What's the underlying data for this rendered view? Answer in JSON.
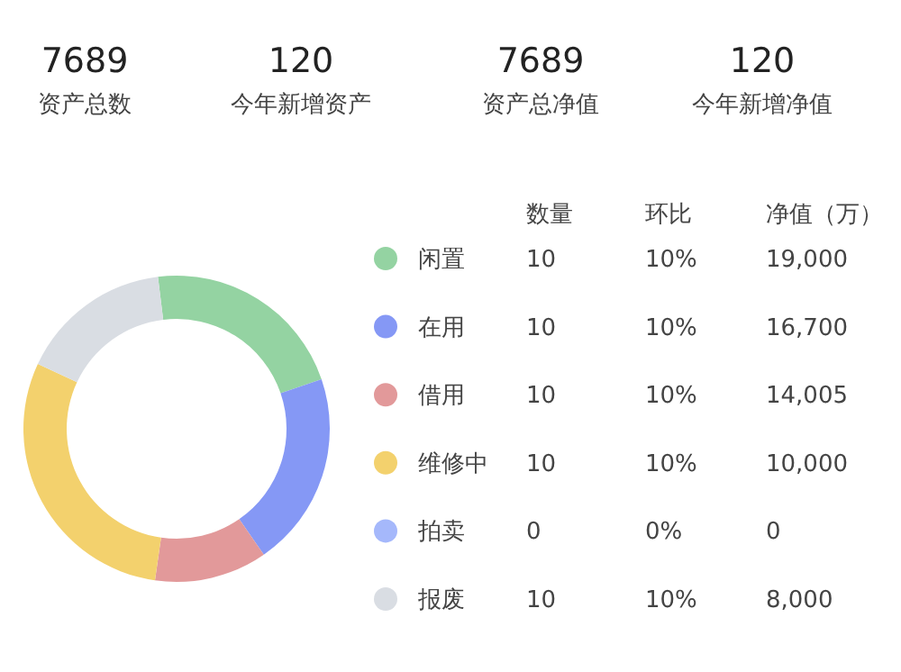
{
  "chart_data": [
    {
      "type": "other",
      "annotations": [
        "7689",
        "资产总数",
        "120",
        "今年新增资产",
        "7689",
        "资产总净值",
        "120",
        "今年新增净值"
      ]
    },
    {
      "type": "donut",
      "categories": [
        "闲置",
        "在用",
        "借用",
        "维修中",
        "拍卖",
        "报废"
      ],
      "values": [
        21.7,
        20.6,
        11.9,
        29.7,
        0,
        16.1
      ],
      "colors": [
        "#94d3a2",
        "#8598f5",
        "#e2999a",
        "#f3d16d",
        "#a5b8fb",
        "#d9dde3"
      ],
      "legend": "right"
    },
    {
      "type": "other",
      "categories": [
        "数量",
        "环比",
        "净值（万）"
      ],
      "cell_labels": [
        [
          "10",
          "10%",
          "19,000"
        ],
        [
          "10",
          "10%",
          "16,700"
        ],
        [
          "10",
          "10%",
          "14,005"
        ],
        [
          "10",
          "10%",
          "10,000"
        ],
        [
          "0",
          "0%",
          "0"
        ],
        [
          "10",
          "10%",
          "8,000"
        ]
      ]
    }
  ]
}
